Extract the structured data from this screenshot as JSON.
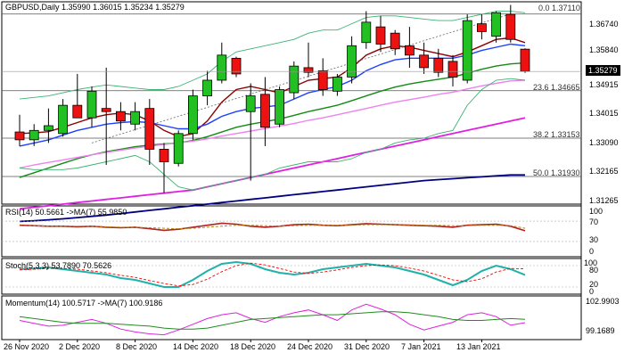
{
  "chart_data": {
    "type": "candlestick",
    "symbol_label": "GBPUSD,Daily",
    "ohlc_header": [
      "1.35990",
      "1.36015",
      "1.35234",
      "1.35279"
    ],
    "last_price": "1.35279",
    "price_ticks": [
      "1.36740",
      "1.35840",
      "1.34915",
      "1.34015",
      "1.33090",
      "1.32165",
      "1.31265"
    ],
    "price_range": [
      1.3105,
      1.375
    ],
    "date_labels": [
      "26 Nov 2020",
      "2 Dec 2020",
      "8 Dec 2020",
      "14 Dec 2020",
      "18 Dec 2020",
      "24 Dec 2020",
      "31 Dec 2020",
      "7 Jan 2021",
      "13 Jan 2021"
    ],
    "date_label_bars": [
      0,
      4,
      8,
      12,
      16,
      20,
      24,
      28,
      32
    ],
    "candles": [
      {
        "o": 1.3335,
        "h": 1.339,
        "l": 1.329,
        "c": 1.331
      },
      {
        "o": 1.331,
        "h": 1.336,
        "l": 1.329,
        "c": 1.334
      },
      {
        "o": 1.334,
        "h": 1.341,
        "l": 1.33,
        "c": 1.3355
      },
      {
        "o": 1.333,
        "h": 1.344,
        "l": 1.332,
        "c": 1.342
      },
      {
        "o": 1.342,
        "h": 1.352,
        "l": 1.338,
        "c": 1.338
      },
      {
        "o": 1.338,
        "h": 1.348,
        "l": 1.335,
        "c": 1.3465
      },
      {
        "o": 1.341,
        "h": 1.354,
        "l": 1.323,
        "c": 1.34
      },
      {
        "o": 1.34,
        "h": 1.343,
        "l": 1.334,
        "c": 1.337
      },
      {
        "o": 1.336,
        "h": 1.343,
        "l": 1.334,
        "c": 1.34
      },
      {
        "o": 1.341,
        "h": 1.344,
        "l": 1.323,
        "c": 1.328
      },
      {
        "o": 1.328,
        "h": 1.33,
        "l": 1.314,
        "c": 1.324
      },
      {
        "o": 1.3235,
        "h": 1.334,
        "l": 1.3225,
        "c": 1.333
      },
      {
        "o": 1.333,
        "h": 1.347,
        "l": 1.331,
        "c": 1.345
      },
      {
        "o": 1.345,
        "h": 1.353,
        "l": 1.342,
        "c": 1.35
      },
      {
        "o": 1.35,
        "h": 1.362,
        "l": 1.349,
        "c": 1.358
      },
      {
        "o": 1.357,
        "h": 1.3575,
        "l": 1.351,
        "c": 1.352
      },
      {
        "o": 1.34,
        "h": 1.349,
        "l": 1.318,
        "c": 1.345
      },
      {
        "o": 1.3455,
        "h": 1.351,
        "l": 1.329,
        "c": 1.335
      },
      {
        "o": 1.336,
        "h": 1.348,
        "l": 1.335,
        "c": 1.347
      },
      {
        "o": 1.346,
        "h": 1.356,
        "l": 1.344,
        "c": 1.3545
      },
      {
        "o": 1.354,
        "h": 1.362,
        "l": 1.351,
        "c": 1.3525
      },
      {
        "o": 1.353,
        "h": 1.357,
        "l": 1.345,
        "c": 1.347
      },
      {
        "o": 1.3465,
        "h": 1.352,
        "l": 1.345,
        "c": 1.351
      },
      {
        "o": 1.351,
        "h": 1.364,
        "l": 1.349,
        "c": 1.361
      },
      {
        "o": 1.362,
        "h": 1.372,
        "l": 1.36,
        "c": 1.3685
      },
      {
        "o": 1.367,
        "h": 1.3705,
        "l": 1.359,
        "c": 1.3615
      },
      {
        "o": 1.365,
        "h": 1.366,
        "l": 1.358,
        "c": 1.36
      },
      {
        "o": 1.361,
        "h": 1.367,
        "l": 1.354,
        "c": 1.358
      },
      {
        "o": 1.358,
        "h": 1.362,
        "l": 1.352,
        "c": 1.354
      },
      {
        "o": 1.357,
        "h": 1.36,
        "l": 1.351,
        "c": 1.3525
      },
      {
        "o": 1.356,
        "h": 1.358,
        "l": 1.348,
        "c": 1.351
      },
      {
        "o": 1.35,
        "h": 1.371,
        "l": 1.349,
        "c": 1.369
      },
      {
        "o": 1.368,
        "h": 1.371,
        "l": 1.363,
        "c": 1.3655
      },
      {
        "o": 1.364,
        "h": 1.372,
        "l": 1.362,
        "c": 1.3715
      },
      {
        "o": 1.371,
        "h": 1.374,
        "l": 1.362,
        "c": 1.363
      },
      {
        "o": 1.3599,
        "h": 1.36015,
        "l": 1.35234,
        "c": 1.35279
      }
    ],
    "ma_series": [
      {
        "color": "#8b0000",
        "values": [
          1.333,
          1.3332,
          1.3336,
          1.335,
          1.3365,
          1.338,
          1.339,
          1.3395,
          1.339,
          1.337,
          1.334,
          1.332,
          1.333,
          1.337,
          1.343,
          1.347,
          1.348,
          1.347,
          1.346,
          1.348,
          1.35,
          1.3505,
          1.351,
          1.354,
          1.358,
          1.36,
          1.361,
          1.3605,
          1.3595,
          1.3585,
          1.3575,
          1.359,
          1.361,
          1.363,
          1.3635,
          1.362
        ]
      },
      {
        "color": "#1f3fff",
        "values": [
          1.329,
          1.33,
          1.331,
          1.3325,
          1.334,
          1.335,
          1.336,
          1.3365,
          1.3368,
          1.3365,
          1.3355,
          1.3345,
          1.3345,
          1.336,
          1.3385,
          1.34,
          1.341,
          1.3415,
          1.342,
          1.344,
          1.346,
          1.347,
          1.348,
          1.35,
          1.353,
          1.355,
          1.3565,
          1.357,
          1.357,
          1.357,
          1.357,
          1.358,
          1.3595,
          1.3605,
          1.3615,
          1.361
        ]
      },
      {
        "color": "#138a13",
        "values": [
          1.319,
          1.3205,
          1.322,
          1.3235,
          1.325,
          1.3262,
          1.3272,
          1.328,
          1.3288,
          1.3293,
          1.3297,
          1.33,
          1.3308,
          1.332,
          1.3335,
          1.335,
          1.336,
          1.3368,
          1.3376,
          1.3388,
          1.34,
          1.341,
          1.342,
          1.3435,
          1.345,
          1.3465,
          1.3478,
          1.3488,
          1.3496,
          1.3503,
          1.351,
          1.3522,
          1.3535,
          1.3545,
          1.3552,
          1.3555
        ]
      },
      {
        "color": "#ee82ee",
        "values": [
          1.322,
          1.323,
          1.3238,
          1.3246,
          1.3254,
          1.3262,
          1.327,
          1.3277,
          1.3284,
          1.329,
          1.3295,
          1.33,
          1.3306,
          1.3313,
          1.3322,
          1.333,
          1.3338,
          1.3346,
          1.3354,
          1.3362,
          1.3372,
          1.338,
          1.339,
          1.34,
          1.341,
          1.342,
          1.343,
          1.3438,
          1.3446,
          1.3455,
          1.3462,
          1.3472,
          1.3482,
          1.349,
          1.3498,
          1.35
        ]
      },
      {
        "color": "#e020e0",
        "values": [
          1.309,
          1.3095,
          1.31,
          1.3105,
          1.311,
          1.3115,
          1.312,
          1.3125,
          1.313,
          1.3135,
          1.314,
          1.3145,
          1.315,
          1.316,
          1.317,
          1.318,
          1.319,
          1.32,
          1.321,
          1.322,
          1.323,
          1.324,
          1.325,
          1.326,
          1.327,
          1.328,
          1.329,
          1.33,
          1.331,
          1.332,
          1.333,
          1.334,
          1.335,
          1.336,
          1.337,
          1.338
        ]
      },
      {
        "color": "#000080",
        "values": [
          1.305,
          1.3052,
          1.3055,
          1.3058,
          1.3062,
          1.3066,
          1.307,
          1.3075,
          1.308,
          1.3085,
          1.309,
          1.3095,
          1.31,
          1.3105,
          1.311,
          1.3115,
          1.312,
          1.3125,
          1.313,
          1.3135,
          1.314,
          1.3145,
          1.315,
          1.3155,
          1.316,
          1.3165,
          1.317,
          1.3175,
          1.318,
          1.3183,
          1.3186,
          1.3189,
          1.3192,
          1.3195,
          1.3198,
          1.3198
        ]
      },
      {
        "color": "#3cb371",
        "values": [
          1.344,
          1.3445,
          1.345,
          1.346,
          1.347,
          1.3478,
          1.3485,
          1.348,
          1.3475,
          1.347,
          1.347,
          1.348,
          1.35,
          1.352,
          1.356,
          1.359,
          1.36,
          1.361,
          1.362,
          1.363,
          1.365,
          1.366,
          1.366,
          1.368,
          1.37,
          1.3705,
          1.3705,
          1.37,
          1.3695,
          1.369,
          1.369,
          1.37,
          1.371,
          1.372,
          1.372,
          1.3715
        ]
      },
      {
        "color": "#3cb371",
        "values": [
          1.322,
          1.3215,
          1.3215,
          1.3215,
          1.322,
          1.323,
          1.324,
          1.325,
          1.326,
          1.324,
          1.32,
          1.316,
          1.315,
          1.316,
          1.317,
          1.318,
          1.319,
          1.32,
          1.322,
          1.323,
          1.324,
          1.324,
          1.324,
          1.325,
          1.327,
          1.328,
          1.33,
          1.331,
          1.3315,
          1.333,
          1.334,
          1.342,
          1.347,
          1.35,
          1.3505,
          1.35
        ]
      }
    ],
    "dotted_trendline": {
      "from": [
        1.33,
        5
      ],
      "to": [
        1.3711,
        34
      ]
    },
    "fib_levels": [
      {
        "label": "0.0 1.37110",
        "value": 1.3711
      },
      {
        "label": "23.6 1.34665",
        "value": 1.34665
      },
      {
        "label": "38.2 1.33153",
        "value": 1.33153
      },
      {
        "label": "50.0 1.31930",
        "value": 1.3193
      }
    ],
    "rsi": {
      "label": "RSI(14) 50.5661  ->MA(7) 55.9850",
      "ticks": [
        "100",
        "70",
        "30",
        "0"
      ],
      "levels": [
        70,
        30
      ],
      "values": [
        62,
        61,
        60,
        60,
        59,
        60,
        58,
        57,
        58,
        55,
        52,
        54,
        58,
        62,
        66,
        64,
        60,
        58,
        60,
        63,
        64,
        62,
        61,
        63,
        65,
        64,
        63,
        62,
        61,
        60,
        58,
        62,
        63,
        64,
        60,
        51
      ],
      "ma": [
        61,
        61,
        60,
        60,
        60,
        60,
        59,
        58,
        58,
        57,
        56,
        55,
        56,
        58,
        60,
        62,
        62,
        61,
        60,
        61,
        62,
        62,
        62,
        62,
        63,
        63,
        63,
        63,
        62,
        62,
        61,
        61,
        62,
        62,
        61,
        56
      ]
    },
    "stoch": {
      "label": "Stoch(5,3,3) 53.7890 70.5626",
      "ticks": [
        "100",
        "80",
        "20",
        "0"
      ],
      "levels": [
        80,
        20
      ],
      "k": [
        70,
        72,
        75,
        70,
        65,
        60,
        55,
        45,
        40,
        30,
        20,
        20,
        40,
        65,
        85,
        90,
        85,
        70,
        60,
        55,
        60,
        70,
        75,
        80,
        85,
        80,
        75,
        65,
        55,
        40,
        25,
        40,
        65,
        80,
        70,
        54
      ],
      "d": [
        68,
        70,
        72,
        72,
        70,
        65,
        60,
        53,
        47,
        38,
        30,
        23,
        27,
        42,
        63,
        80,
        87,
        82,
        72,
        62,
        58,
        62,
        68,
        75,
        80,
        82,
        80,
        73,
        65,
        53,
        40,
        35,
        43,
        62,
        72,
        71
      ]
    },
    "momentum": {
      "label": "Momentum(14) 100.5717  ->MA(7) 100.9186",
      "ticks": [
        "102.9903",
        "99.1689"
      ],
      "values": [
        100.8,
        100.5,
        100.2,
        100.3,
        100.6,
        100.9,
        100.5,
        99.9,
        99.6,
        99.4,
        99.3,
        99.8,
        100.4,
        101.0,
        101.4,
        101.6,
        101.0,
        100.6,
        101.2,
        101.6,
        101.9,
        101.4,
        100.8,
        101.9,
        102.5,
        102.0,
        101.4,
        100.4,
        99.8,
        100.2,
        100.6,
        101.4,
        101.6,
        101.2,
        100.3,
        100.57
      ],
      "ma": [
        101.2,
        101.0,
        100.8,
        100.6,
        100.5,
        100.5,
        100.5,
        100.4,
        100.3,
        100.2,
        100.0,
        99.9,
        99.9,
        100.0,
        100.3,
        100.6,
        100.9,
        101.0,
        101.1,
        101.2,
        101.3,
        101.4,
        101.4,
        101.5,
        101.6,
        101.7,
        101.7,
        101.6,
        101.4,
        101.2,
        100.9,
        100.8,
        100.8,
        100.9,
        101.0,
        100.92
      ],
      "range": [
        99.1689,
        102.9903
      ]
    }
  }
}
